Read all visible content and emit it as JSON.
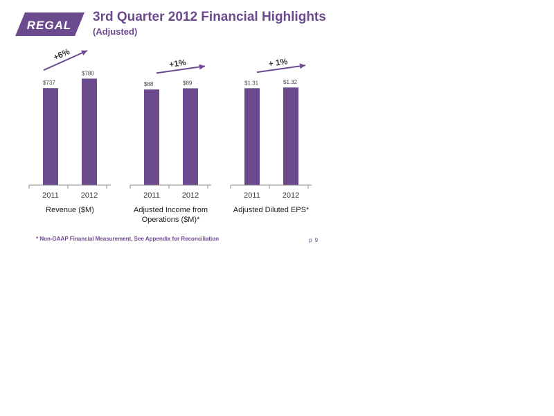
{
  "logo": {
    "text": "REGAL",
    "color": "#6b4a8e"
  },
  "header": {
    "title": "3rd Quarter 2012 Financial Highlights",
    "subtitle": "(Adjusted)"
  },
  "chart_data": [
    {
      "type": "bar",
      "categories": [
        "2011",
        "2012"
      ],
      "values": [
        737,
        780
      ],
      "data_labels": [
        "$737",
        "$780"
      ],
      "title": "Revenue ($M)",
      "change_label": "+6%",
      "ylim": [
        300,
        800
      ],
      "color": "#6b4a8e"
    },
    {
      "type": "bar",
      "categories": [
        "2011",
        "2012"
      ],
      "values": [
        88,
        89
      ],
      "data_labels": [
        "$88",
        "$89"
      ],
      "title": "Adjusted Income from Operations ($M)*",
      "title_lines": [
        "Adjusted Income from",
        "Operations ($M)*"
      ],
      "change_label": "+1%",
      "ylim": [
        0,
        102
      ],
      "color": "#6b4a8e"
    },
    {
      "type": "bar",
      "categories": [
        "2011",
        "2012"
      ],
      "values": [
        1.31,
        1.32
      ],
      "data_labels": [
        "$1.31",
        "$1.32"
      ],
      "title": "Adjusted Diluted EPS*",
      "change_label": "+ 1%",
      "ylim": [
        0,
        1.5
      ],
      "color": "#6b4a8e"
    }
  ],
  "footnote": "*  Non-GAAP Financial Measurement,  See Appendix for Reconciliation",
  "page_number": "p 9"
}
